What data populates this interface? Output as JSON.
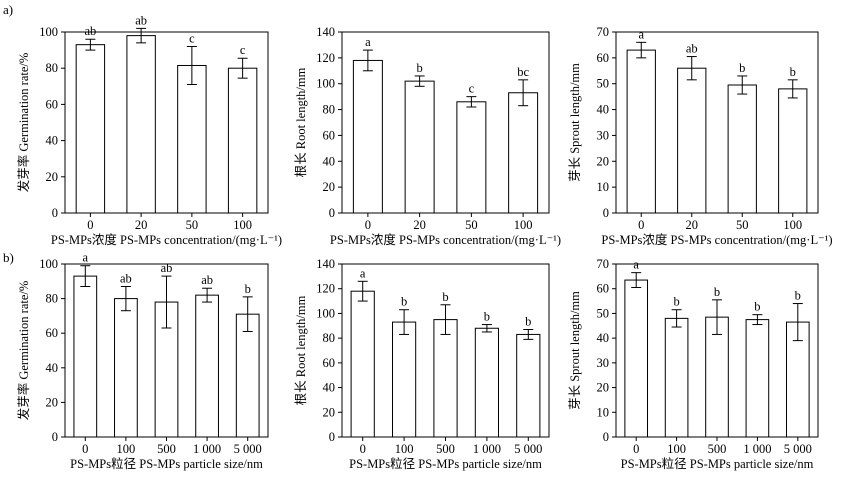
{
  "row_labels": [
    "a)",
    "b)"
  ],
  "chart_data": [
    {
      "type": "bar",
      "title": "",
      "categories": [
        "0",
        "20",
        "50",
        "100"
      ],
      "values": [
        93,
        98,
        81.5,
        80
      ],
      "errors": [
        3,
        4,
        10.5,
        5.5
      ],
      "significance": [
        "ab",
        "ab",
        "c",
        "c"
      ],
      "ylabel": "发芽率 Germination rate/%",
      "xlabel": "PS-MPs浓度 PS-MPs concentration/(mg·L⁻¹)",
      "ylim": [
        0,
        100
      ],
      "yticks": [
        "0",
        "20",
        "40",
        "60",
        "80",
        "100"
      ]
    },
    {
      "type": "bar",
      "title": "",
      "categories": [
        "0",
        "20",
        "50",
        "100"
      ],
      "values": [
        118,
        102,
        86,
        93
      ],
      "errors": [
        8,
        4,
        4,
        10
      ],
      "significance": [
        "a",
        "b",
        "c",
        "bc"
      ],
      "ylabel": "根长 Root length/mm",
      "xlabel": "PS-MPs浓度 PS-MPs concentration/(mg·L⁻¹)",
      "ylim": [
        0,
        140
      ],
      "yticks": [
        "0",
        "20",
        "40",
        "60",
        "80",
        "100",
        "120",
        "140"
      ]
    },
    {
      "type": "bar",
      "title": "",
      "categories": [
        "0",
        "20",
        "50",
        "100"
      ],
      "values": [
        63,
        56,
        49.5,
        48
      ],
      "errors": [
        3,
        4.5,
        3.5,
        3.5
      ],
      "significance": [
        "a",
        "ab",
        "b",
        "b"
      ],
      "ylabel": "芽长 Sprout length/mm",
      "xlabel": "PS-MPs浓度 PS-MPs concentration/(mg·L⁻¹)",
      "ylim": [
        0,
        70
      ],
      "yticks": [
        "0",
        "10",
        "20",
        "30",
        "40",
        "50",
        "60",
        "70"
      ]
    },
    {
      "type": "bar",
      "title": "",
      "categories": [
        "0",
        "100",
        "500",
        "1 000",
        "5 000"
      ],
      "values": [
        93,
        80,
        78,
        82,
        71
      ],
      "errors": [
        6,
        7,
        15,
        4,
        10
      ],
      "significance": [
        "a",
        "ab",
        "ab",
        "ab",
        "b"
      ],
      "ylabel": "发芽率 Germination rate/%",
      "xlabel": "PS-MPs粒径 PS-MPs particle size/nm",
      "ylim": [
        0,
        100
      ],
      "yticks": [
        "0",
        "20",
        "40",
        "60",
        "80",
        "100"
      ]
    },
    {
      "type": "bar",
      "title": "",
      "categories": [
        "0",
        "100",
        "500",
        "1 000",
        "5 000"
      ],
      "values": [
        118,
        93,
        95,
        88,
        83
      ],
      "errors": [
        8,
        10,
        12,
        3,
        4
      ],
      "significance": [
        "a",
        "b",
        "b",
        "b",
        "b"
      ],
      "ylabel": "根长 Root length/mm",
      "xlabel": "PS-MPs粒径 PS-MPs particle size/nm",
      "ylim": [
        0,
        140
      ],
      "yticks": [
        "0",
        "20",
        "40",
        "60",
        "80",
        "100",
        "120",
        "140"
      ]
    },
    {
      "type": "bar",
      "title": "",
      "categories": [
        "0",
        "100",
        "500",
        "1 000",
        "5 000"
      ],
      "values": [
        63.5,
        48,
        48.5,
        47.5,
        46.5
      ],
      "errors": [
        3,
        3.5,
        7,
        2,
        7.5
      ],
      "significance": [
        "a",
        "b",
        "b",
        "b",
        "b"
      ],
      "ylabel": "芽长 Sprout length/mm",
      "xlabel": "PS-MPs粒径 PS-MPs particle size/nm",
      "ylim": [
        0,
        70
      ],
      "yticks": [
        "0",
        "10",
        "20",
        "30",
        "40",
        "50",
        "60",
        "70"
      ]
    }
  ]
}
